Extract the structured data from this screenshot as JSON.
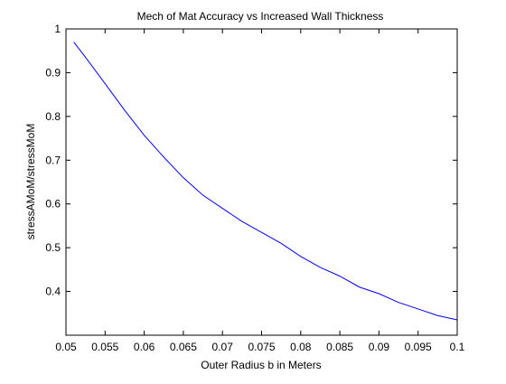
{
  "chart_data": {
    "type": "line",
    "title": "Mech of Mat Accuracy vs Increased Wall Thickness",
    "xlabel": "Outer Radius b in Meters",
    "ylabel": "stressAMoM/stressMoM",
    "xlim": [
      0.05,
      0.1
    ],
    "ylim": [
      0.3,
      1.0
    ],
    "xticks": [
      "0.05",
      "0.055",
      "0.06",
      "0.065",
      "0.07",
      "0.075",
      "0.08",
      "0.085",
      "0.09",
      "0.095",
      "0.1"
    ],
    "yticks": [
      "0.4",
      "0.5",
      "0.6",
      "0.7",
      "0.8",
      "0.9",
      "1"
    ],
    "grid": false,
    "series": [
      {
        "color": "#0000ff",
        "x": [
          0.051,
          0.0525,
          0.055,
          0.0575,
          0.06,
          0.0625,
          0.065,
          0.0675,
          0.07,
          0.0725,
          0.075,
          0.0775,
          0.08,
          0.0825,
          0.085,
          0.0875,
          0.09,
          0.0925,
          0.095,
          0.0975,
          0.1
        ],
        "y": [
          0.97,
          0.935,
          0.875,
          0.814,
          0.757,
          0.707,
          0.66,
          0.62,
          0.59,
          0.56,
          0.535,
          0.51,
          0.48,
          0.455,
          0.435,
          0.41,
          0.395,
          0.375,
          0.36,
          0.345,
          0.335
        ]
      }
    ]
  }
}
